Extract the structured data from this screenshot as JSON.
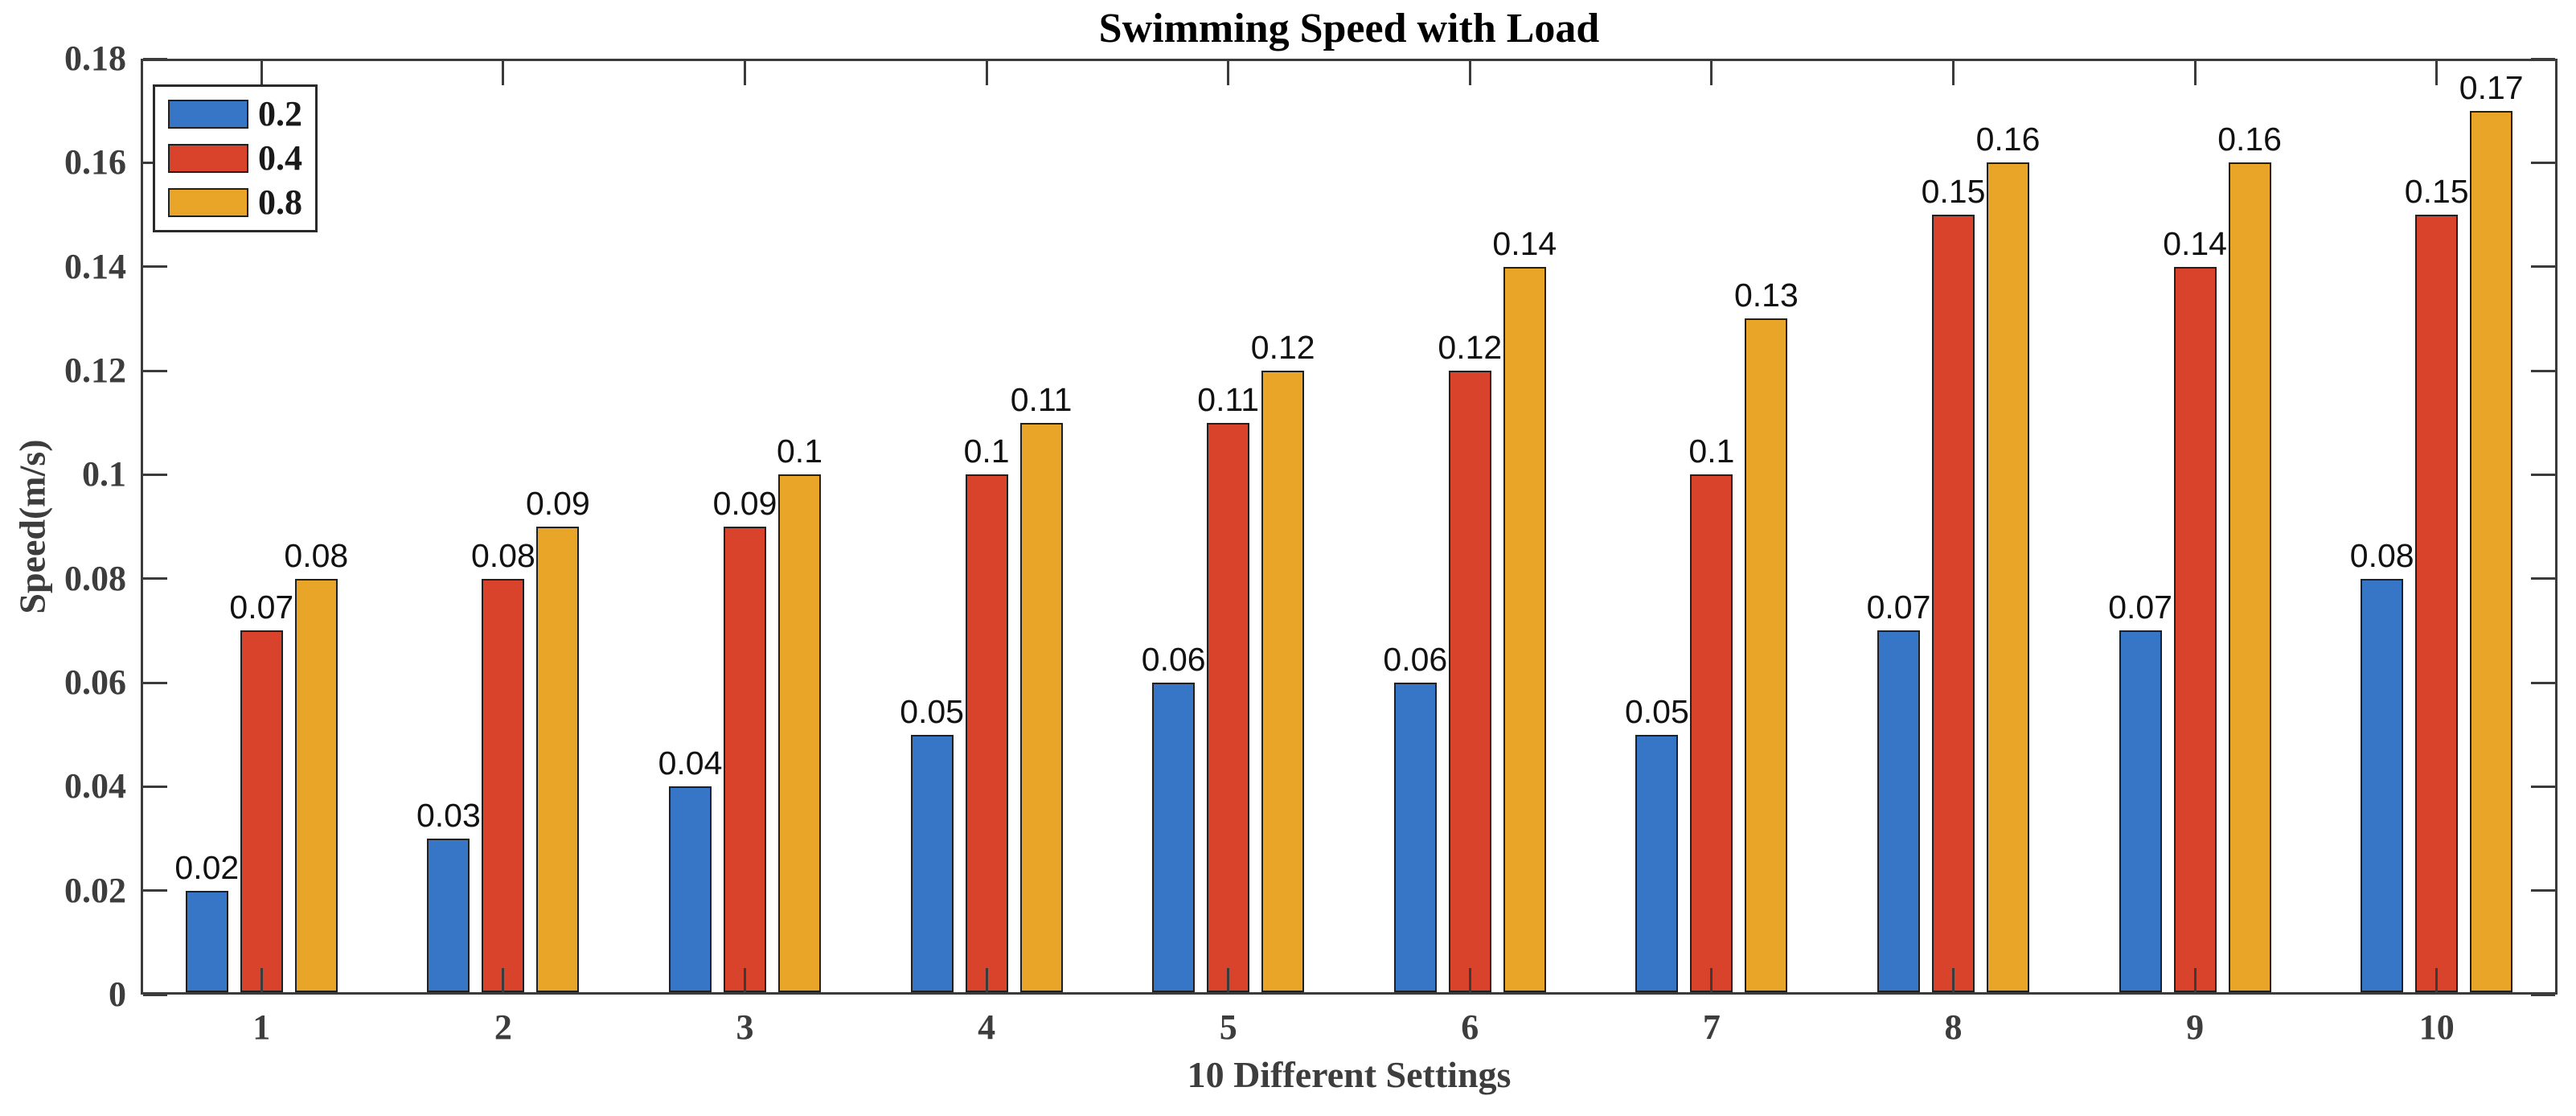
{
  "figure": {
    "title": "Swimming Speed with Load",
    "xlabel": "10 Different Settings",
    "ylabel": "Speed(m/s)"
  },
  "chart_data": {
    "type": "bar",
    "title": "Swimming Speed with Load",
    "xlabel": "10 Different Settings",
    "ylabel": "Speed(m/s)",
    "categories": [
      "1",
      "2",
      "3",
      "4",
      "5",
      "6",
      "7",
      "8",
      "9",
      "10"
    ],
    "series": [
      {
        "name": "0.2",
        "color": "#3776C7",
        "values": [
          0.02,
          0.03,
          0.04,
          0.05,
          0.06,
          0.06,
          0.05,
          0.07,
          0.07,
          0.08
        ],
        "labels": [
          "0.02",
          "0.03",
          "0.04",
          "0.05",
          "0.06",
          "0.06",
          "0.05",
          "0.07",
          "0.07",
          "0.08"
        ]
      },
      {
        "name": "0.4",
        "color": "#D9432B",
        "values": [
          0.07,
          0.08,
          0.09,
          0.1,
          0.11,
          0.12,
          0.1,
          0.15,
          0.14,
          0.15
        ],
        "labels": [
          "0.07",
          "0.08",
          "0.09",
          "0.1",
          "0.11",
          "0.12",
          "0.1",
          "0.15",
          "0.14",
          "0.15"
        ]
      },
      {
        "name": "0.8",
        "color": "#E9A528",
        "values": [
          0.08,
          0.09,
          0.1,
          0.11,
          0.12,
          0.14,
          0.13,
          0.16,
          0.16,
          0.17
        ],
        "labels": [
          "0.08",
          "0.09",
          "0.1",
          "0.11",
          "0.12",
          "0.14",
          "0.13",
          "0.16",
          "0.16",
          "0.17"
        ]
      }
    ],
    "ylim": [
      0,
      0.18
    ],
    "yticks": {
      "values": [
        0,
        0.02,
        0.04,
        0.06,
        0.08,
        0.1,
        0.12,
        0.14,
        0.16,
        0.18
      ],
      "labels": [
        "0",
        "0.02",
        "0.04",
        "0.06",
        "0.08",
        "0.1",
        "0.12",
        "0.14",
        "0.16",
        "0.18"
      ]
    },
    "grid": false,
    "legend_position": "top-left",
    "colors": {
      "axis": "#3b3b3b",
      "tick_text": "#3d3d3d",
      "title_text": "#000000",
      "bar_edge": "#202020",
      "data_label_text": "#111111",
      "background": "#ffffff"
    }
  }
}
